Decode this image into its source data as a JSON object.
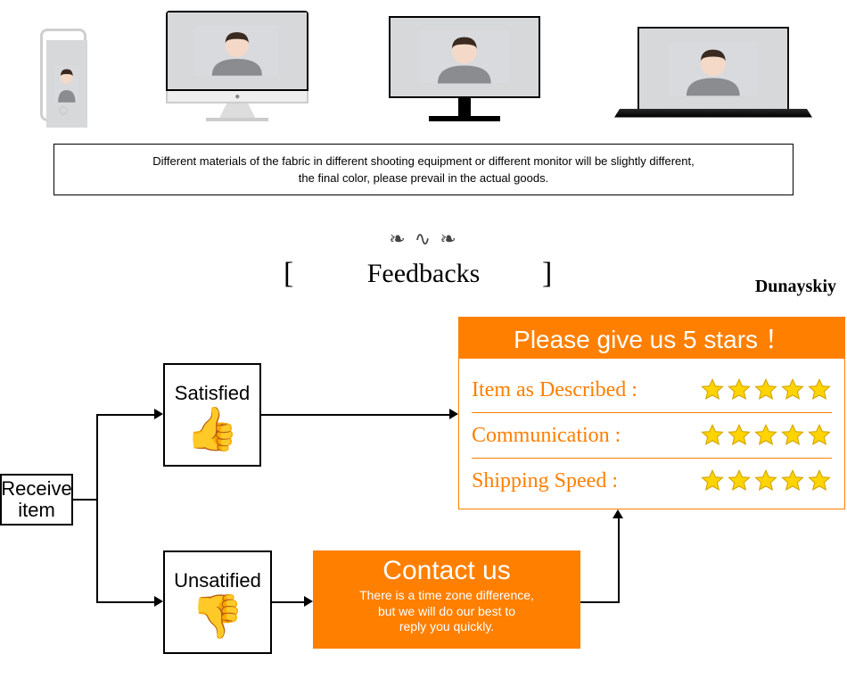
{
  "disclaimer": {
    "line1": "Different materials of the fabric in different shooting equipment or different monitor will be slightly different,",
    "line2": "the final color, please prevail in the actual goods."
  },
  "header": {
    "flourish": "❧ ∿ ❧",
    "bracket_left": "[",
    "bracket_right": "]",
    "title": "Feedbacks",
    "brand": "Dunayskiy"
  },
  "flow": {
    "receive_line1": "Receive",
    "receive_line2": "item",
    "satisfied_label": "Satisfied",
    "unsatisfied_label": "Unsatified",
    "thumb_up": "👍",
    "thumb_down": "👎",
    "contact_title": "Contact us",
    "contact_sub1": "There is a time zone difference,",
    "contact_sub2": "but we will do our best to",
    "contact_sub3": "reply you quickly."
  },
  "rating": {
    "header": "Please give us 5 stars ！",
    "rows": [
      {
        "label": "Item as Described :"
      },
      {
        "label": "Communication :"
      },
      {
        "label": "Shipping Speed :"
      }
    ],
    "star_count": 5,
    "star_fill": "#ffd400",
    "star_stroke": "#d4a800"
  },
  "colors": {
    "orange": "#ff7f00",
    "black": "#000000",
    "white": "#ffffff"
  }
}
